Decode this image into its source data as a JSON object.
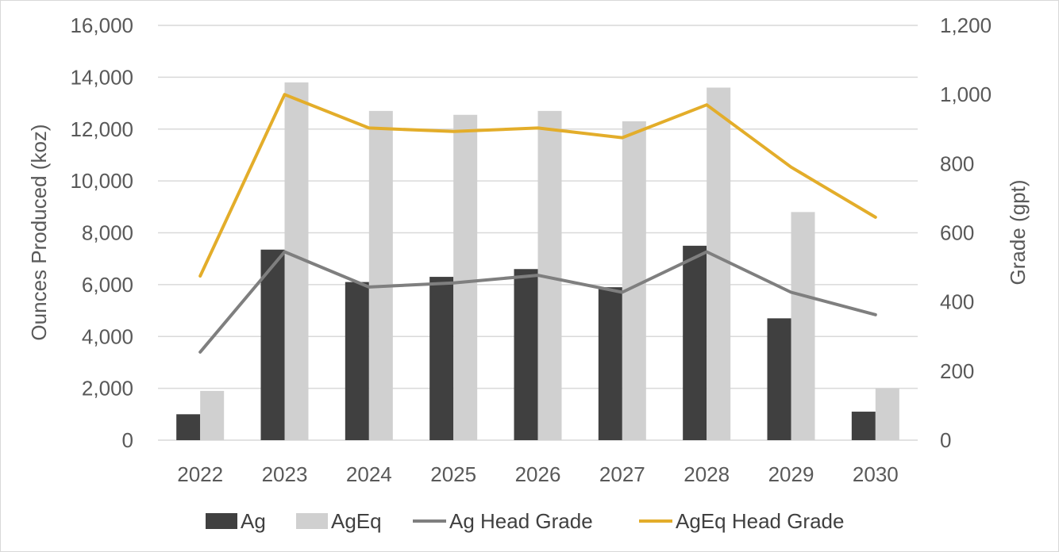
{
  "chart_data": {
    "type": "bar",
    "categories": [
      "2022",
      "2023",
      "2024",
      "2025",
      "2026",
      "2027",
      "2028",
      "2029",
      "2030"
    ],
    "series": [
      {
        "name": "Ag",
        "kind": "bar",
        "axis": "left",
        "color": "#404040",
        "values": [
          1000,
          7350,
          6100,
          6300,
          6600,
          5900,
          7500,
          4700,
          1100
        ]
      },
      {
        "name": "AgEq",
        "kind": "bar",
        "axis": "left",
        "color": "#d0d0d0",
        "values": [
          1900,
          13800,
          12700,
          12550,
          12700,
          12300,
          13600,
          8800,
          2000
        ]
      },
      {
        "name": "Ag Head Grade",
        "kind": "line",
        "axis": "right",
        "color": "#7f7f7f",
        "values": [
          255,
          545,
          443,
          455,
          477,
          428,
          545,
          428,
          363
        ]
      },
      {
        "name": "AgEq Head Grade",
        "kind": "line",
        "axis": "right",
        "color": "#e3ad2a",
        "values": [
          475,
          1000,
          903,
          893,
          903,
          875,
          970,
          790,
          645
        ]
      }
    ],
    "y_left": {
      "label": "Ounces Produced (koz)",
      "min": 0,
      "max": 16000,
      "ticks": [
        "0",
        "2,000",
        "4,000",
        "6,000",
        "8,000",
        "10,000",
        "12,000",
        "14,000",
        "16,000"
      ]
    },
    "y_right": {
      "label": "Grade (gpt)",
      "min": 0,
      "max": 1200,
      "ticks": [
        "0",
        "200",
        "400",
        "600",
        "800",
        "1,000",
        "1,200"
      ]
    },
    "grid": true,
    "legend_position": "bottom",
    "gridline_color": "#d9d9d9"
  }
}
